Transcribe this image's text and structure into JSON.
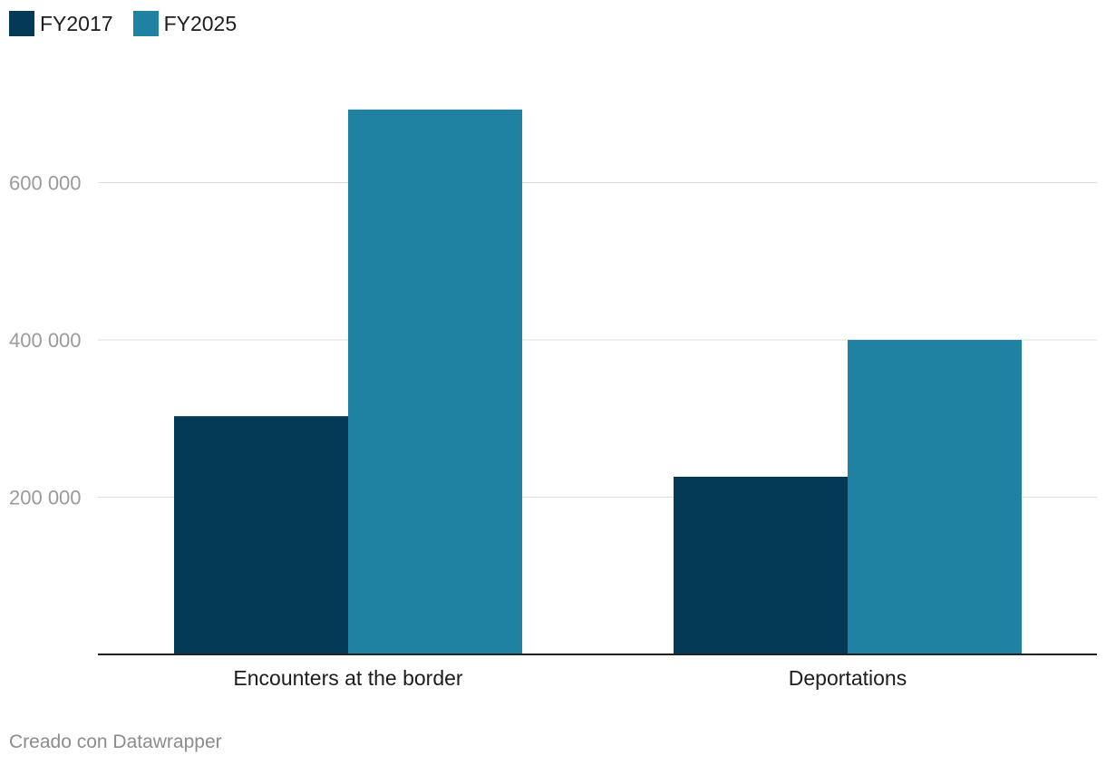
{
  "chart_data": {
    "type": "bar",
    "categories": [
      "Encounters at the border",
      "Deportations"
    ],
    "series": [
      {
        "name": "FY2017",
        "values": [
          303000,
          226000
        ],
        "color": "#053a56"
      },
      {
        "name": "FY2025",
        "values": [
          693000,
          400000
        ],
        "color": "#1f82a2"
      }
    ],
    "yticks": [
      200000,
      400000,
      600000
    ],
    "ytick_labels": [
      "200 000",
      "400 000",
      "600 000"
    ],
    "ylim": [
      0,
      700000
    ],
    "title": "",
    "xlabel": "",
    "ylabel": "",
    "grid": true,
    "legend_position": "top-left"
  },
  "legend": {
    "items": [
      {
        "label": "FY2017",
        "color": "#053a56"
      },
      {
        "label": "FY2025",
        "color": "#1f82a2"
      }
    ]
  },
  "footer": {
    "credit": "Creado con Datawrapper"
  }
}
